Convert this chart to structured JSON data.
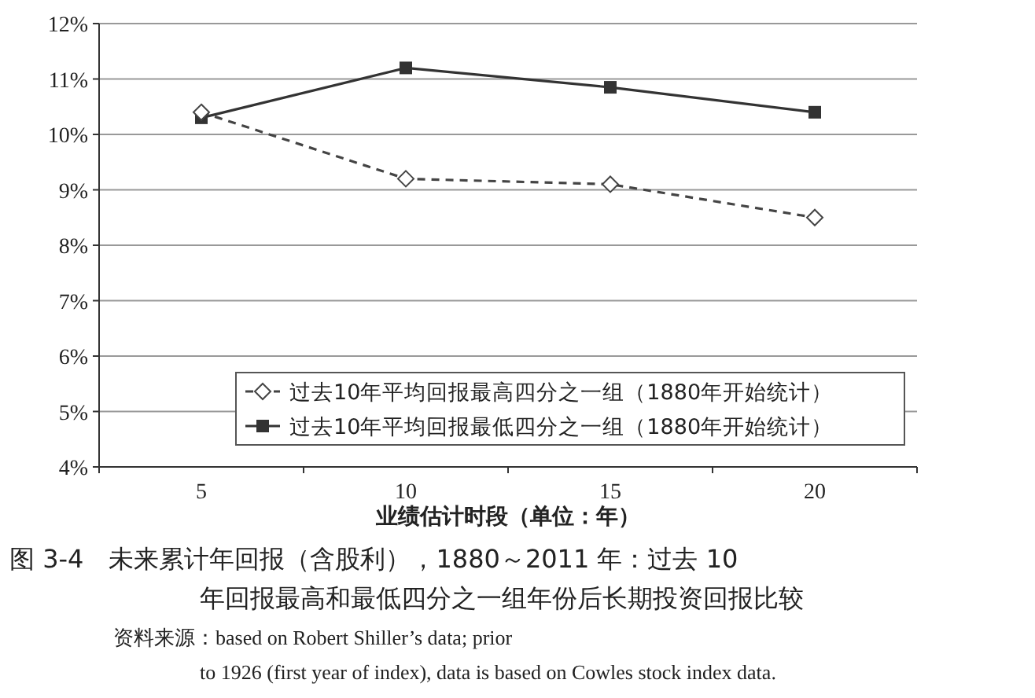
{
  "chart_data": {
    "type": "line",
    "xlabel": "业绩估计时段（单位：年）",
    "categories": [
      "5",
      "10",
      "15",
      "20"
    ],
    "series": [
      {
        "name": "过去10年平均回报最高四分之一组（1880年开始统计）",
        "color": "#444444",
        "values": [
          10.4,
          9.2,
          9.1,
          8.5
        ],
        "marker": "diamond",
        "line_style": "dashed"
      },
      {
        "name": "过去10年平均回报最低四分之一组（1880年开始统计）",
        "color": "#333333",
        "values": [
          10.3,
          11.2,
          10.85,
          10.4
        ],
        "marker": "square",
        "line_style": "solid"
      }
    ],
    "ylim": [
      4,
      12
    ],
    "yticks": [
      {
        "value": 4,
        "label": "4%"
      },
      {
        "value": 5,
        "label": "5%"
      },
      {
        "value": 6,
        "label": "6%"
      },
      {
        "value": 7,
        "label": "7%"
      },
      {
        "value": 8,
        "label": "8%"
      },
      {
        "value": 9,
        "label": "9%"
      },
      {
        "value": 10,
        "label": "10%"
      },
      {
        "value": 11,
        "label": "11%"
      },
      {
        "value": 12,
        "label": "12%"
      }
    ],
    "grid": "y",
    "legend": "bottom",
    "annotations": [
      "图 3-4　未来累计年回报（含股利），1880～2011 年：过去 10",
      "年回报最高和最低四分之一组年份后长期投资回报比较",
      "资料来源：based on Robert Shiller’s data; prior",
      "to 1926 (first year of index), data is based on Cowles stock index data."
    ]
  }
}
